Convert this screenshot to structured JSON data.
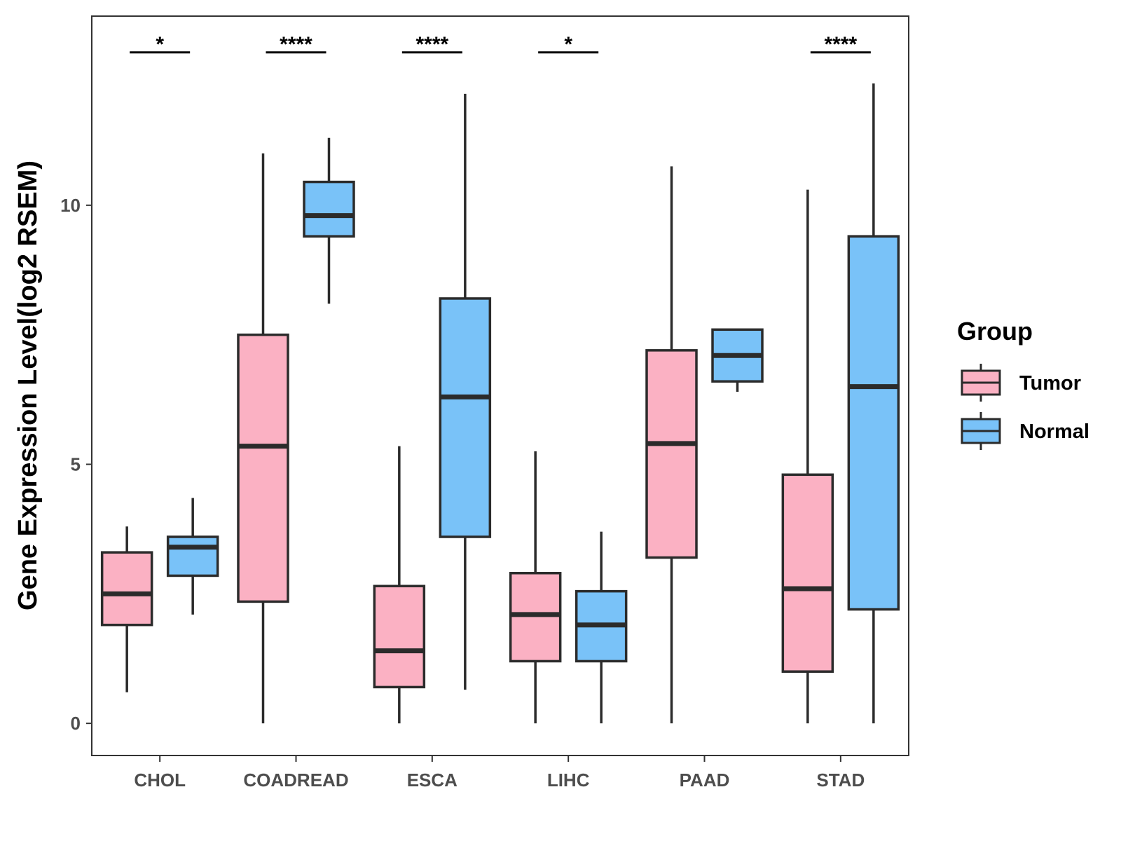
{
  "chart_data": {
    "type": "boxplot",
    "title": "",
    "xlabel": "",
    "ylabel": "Gene Expression Level(log2 RSEM)",
    "ylim": [
      -0.62,
      13.65
    ],
    "yticks": [
      0,
      5,
      10
    ],
    "ytick_labels": [
      "0",
      "5",
      "10"
    ],
    "grid": false,
    "legend": {
      "title": "Group",
      "position": "right",
      "entries": [
        {
          "name": "Tumor",
          "color": "#FBB1C3"
        },
        {
          "name": "Normal",
          "color": "#79C2F8"
        }
      ]
    },
    "categories": [
      "CHOL",
      "COADREAD",
      "ESCA",
      "LIHC",
      "PAAD",
      "STAD"
    ],
    "series": [
      {
        "name": "Tumor",
        "color": "#FBB1C3",
        "boxes": [
          {
            "whisker_low": 0.6,
            "q1": 1.9,
            "median": 2.5,
            "q3": 3.3,
            "whisker_high": 3.8
          },
          {
            "whisker_low": 0.0,
            "q1": 2.35,
            "median": 5.35,
            "q3": 7.5,
            "whisker_high": 11.0
          },
          {
            "whisker_low": 0.0,
            "q1": 0.7,
            "median": 1.4,
            "q3": 2.65,
            "whisker_high": 5.35
          },
          {
            "whisker_low": 0.0,
            "q1": 1.2,
            "median": 2.1,
            "q3": 2.9,
            "whisker_high": 5.25
          },
          {
            "whisker_low": 0.0,
            "q1": 3.2,
            "median": 5.4,
            "q3": 7.2,
            "whisker_high": 10.75
          },
          {
            "whisker_low": 0.0,
            "q1": 1.0,
            "median": 2.6,
            "q3": 4.8,
            "whisker_high": 10.3
          }
        ]
      },
      {
        "name": "Normal",
        "color": "#79C2F8",
        "boxes": [
          {
            "whisker_low": 2.1,
            "q1": 2.85,
            "median": 3.4,
            "q3": 3.6,
            "whisker_high": 4.35
          },
          {
            "whisker_low": 8.1,
            "q1": 9.4,
            "median": 9.8,
            "q3": 10.45,
            "whisker_high": 11.3
          },
          {
            "whisker_low": 0.65,
            "q1": 3.6,
            "median": 6.3,
            "q3": 8.2,
            "whisker_high": 12.15
          },
          {
            "whisker_low": 0.0,
            "q1": 1.2,
            "median": 1.9,
            "q3": 2.55,
            "whisker_high": 3.7
          },
          {
            "whisker_low": 6.4,
            "q1": 6.6,
            "median": 7.1,
            "q3": 7.6,
            "whisker_high": 7.6
          },
          {
            "whisker_low": 0.0,
            "q1": 2.2,
            "median": 6.5,
            "q3": 9.4,
            "whisker_high": 12.35
          }
        ]
      }
    ],
    "significance": [
      {
        "category": "CHOL",
        "label": "*"
      },
      {
        "category": "COADREAD",
        "label": "****"
      },
      {
        "category": "ESCA",
        "label": "****"
      },
      {
        "category": "LIHC",
        "label": "*"
      },
      {
        "category": "PAAD",
        "label": ""
      },
      {
        "category": "STAD",
        "label": "****"
      }
    ],
    "significance_level": 12.95
  }
}
